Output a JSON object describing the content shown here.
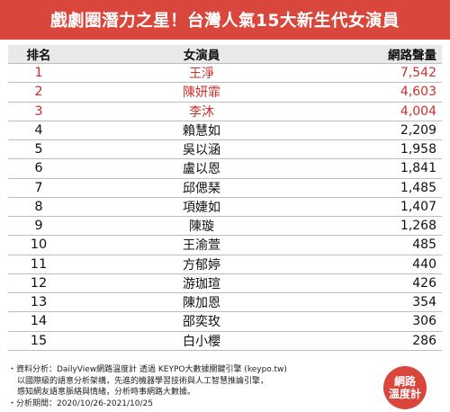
{
  "title": "戲劇圈潛力之星！台灣人氣15大新生代女演員",
  "table": {
    "headers": {
      "rank": "排名",
      "name": "女演員",
      "volume": "網路聲量"
    },
    "rows": [
      {
        "rank": "1",
        "name": "王淨",
        "volume": "7,542"
      },
      {
        "rank": "2",
        "name": "陳妍霏",
        "volume": "4,603"
      },
      {
        "rank": "3",
        "name": "李沐",
        "volume": "4,004"
      },
      {
        "rank": "4",
        "name": "賴慧如",
        "volume": "2,209"
      },
      {
        "rank": "5",
        "name": "吳以涵",
        "volume": "1,958"
      },
      {
        "rank": "6",
        "name": "盧以恩",
        "volume": "1,841"
      },
      {
        "rank": "7",
        "name": "邱偲琹",
        "volume": "1,485"
      },
      {
        "rank": "8",
        "name": "項婕如",
        "volume": "1,407"
      },
      {
        "rank": "9",
        "name": "陳璇",
        "volume": "1,268"
      },
      {
        "rank": "10",
        "name": "王渝萱",
        "volume": "485"
      },
      {
        "rank": "11",
        "name": "方郁婷",
        "volume": "440"
      },
      {
        "rank": "12",
        "name": "游珈瑄",
        "volume": "426"
      },
      {
        "rank": "13",
        "name": "陳加恩",
        "volume": "354"
      },
      {
        "rank": "14",
        "name": "邵奕玫",
        "volume": "306"
      },
      {
        "rank": "15",
        "name": "白小櫻",
        "volume": "286"
      }
    ]
  },
  "footer": {
    "line1": "・資料分析：DailyView網路溫度計 透過 KEYPO大數據關鍵引擎 (keypo.tw)",
    "line2": "以國際級的語意分析架構，先進的機器學習技術與人工智慧推論引擎，",
    "line3": "感知網友語意脈絡與情緒，分析時事網路大數據。",
    "line4": "・分析期間：2020/10/26-2021/10/25"
  },
  "logo": {
    "line1": "網路",
    "line2": "溫度計"
  },
  "colors": {
    "accent": "#d8463c",
    "top_rank_text": "#c9302c",
    "header_bg": "#e9e9e9"
  }
}
